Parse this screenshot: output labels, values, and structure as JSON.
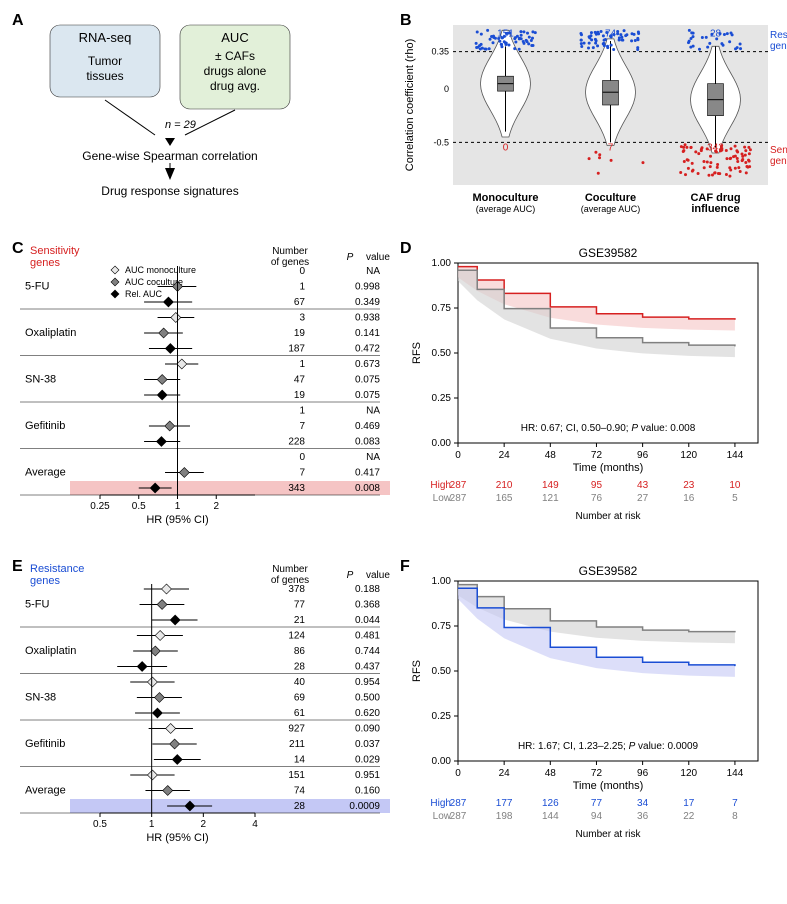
{
  "panelA": {
    "box1_title": "RNA-seq",
    "box1_sub": "Tumor\ntissues",
    "box1_bg": "#dbe7f0",
    "box2_title": "AUC",
    "box2_sub": "± CAFs\ndrugs alone\ndrug avg.",
    "box2_bg": "#e2f0d9",
    "n_label": "n = 29",
    "step1": "Gene-wise Spearman correlation",
    "step2": "Drug response signatures"
  },
  "panelB": {
    "ylabel": "Correlation coefficient (rho)",
    "top_label": "Resistance\ngenes",
    "bottom_label": "Sensitivity\ngenes",
    "upper_thresh": 0.35,
    "lower_thresh": -0.5,
    "categories": [
      {
        "main": "Monoculture",
        "sub": "(average AUC)"
      },
      {
        "main": "Coculture",
        "sub": "(average AUC)"
      },
      {
        "main": "CAF drug\ninfluence",
        "sub": ""
      }
    ],
    "blue_counts": [
      151,
      74,
      28
    ],
    "red_counts": [
      0,
      7,
      343
    ],
    "box_data": [
      {
        "q1": -0.02,
        "med": 0.05,
        "q3": 0.12,
        "whisk_lo": -0.4,
        "whisk_hi": 0.4
      },
      {
        "q1": -0.15,
        "med": -0.03,
        "q3": 0.08,
        "whisk_lo": -0.5,
        "whisk_hi": 0.45
      },
      {
        "q1": -0.25,
        "med": -0.1,
        "q3": 0.05,
        "whisk_lo": -0.55,
        "whisk_hi": 0.4
      }
    ],
    "blue_color": "#1a4dd4",
    "red_color": "#d62020",
    "ylim": [
      -0.9,
      0.6
    ],
    "bg": "#e5e5e5"
  },
  "panelC": {
    "title": "Sensitivity\ngenes",
    "title_color": "#d62020",
    "legend": [
      "AUC monoculture",
      "AUC coculture",
      "Rel. AUC"
    ],
    "legend_fills": [
      "#e8e8e8",
      "#808080",
      "#000000"
    ],
    "drugs": [
      "5-FU",
      "Oxaliplatin",
      "SN-38",
      "Gefitinib",
      "Average"
    ],
    "col_headers": [
      "Number\nof genes",
      "P value"
    ],
    "rows": [
      {
        "drug": "5-FU",
        "set": 0,
        "hr": null,
        "lo": null,
        "hi": null,
        "n": 0,
        "p": "NA"
      },
      {
        "drug": "5-FU",
        "set": 1,
        "hr": 1.0,
        "lo": 0.7,
        "hi": 1.4,
        "n": 1,
        "p": "0.998"
      },
      {
        "drug": "5-FU",
        "set": 2,
        "hr": 0.85,
        "lo": 0.55,
        "hi": 1.3,
        "n": 67,
        "p": "0.349"
      },
      {
        "drug": "Oxaliplatin",
        "set": 0,
        "hr": 0.97,
        "lo": 0.7,
        "hi": 1.35,
        "n": 3,
        "p": "0.938"
      },
      {
        "drug": "Oxaliplatin",
        "set": 1,
        "hr": 0.78,
        "lo": 0.55,
        "hi": 1.1,
        "n": 19,
        "p": "0.141"
      },
      {
        "drug": "Oxaliplatin",
        "set": 2,
        "hr": 0.88,
        "lo": 0.6,
        "hi": 1.3,
        "n": 187,
        "p": "0.472"
      },
      {
        "drug": "SN-38",
        "set": 0,
        "hr": 1.08,
        "lo": 0.8,
        "hi": 1.45,
        "n": 1,
        "p": "0.673"
      },
      {
        "drug": "SN-38",
        "set": 1,
        "hr": 0.76,
        "lo": 0.55,
        "hi": 1.05,
        "n": 47,
        "p": "0.075"
      },
      {
        "drug": "SN-38",
        "set": 2,
        "hr": 0.76,
        "lo": 0.55,
        "hi": 1.05,
        "n": 19,
        "p": "0.075"
      },
      {
        "drug": "Gefitinib",
        "set": 0,
        "hr": null,
        "lo": null,
        "hi": null,
        "n": 1,
        "p": "NA"
      },
      {
        "drug": "Gefitinib",
        "set": 1,
        "hr": 0.87,
        "lo": 0.6,
        "hi": 1.25,
        "n": 7,
        "p": "0.469"
      },
      {
        "drug": "Gefitinib",
        "set": 2,
        "hr": 0.75,
        "lo": 0.55,
        "hi": 1.05,
        "n": 228,
        "p": "0.083"
      },
      {
        "drug": "Average",
        "set": 0,
        "hr": null,
        "lo": null,
        "hi": null,
        "n": 0,
        "p": "NA"
      },
      {
        "drug": "Average",
        "set": 1,
        "hr": 1.13,
        "lo": 0.8,
        "hi": 1.6,
        "n": 7,
        "p": "0.417"
      },
      {
        "drug": "Average",
        "set": 2,
        "hr": 0.67,
        "lo": 0.5,
        "hi": 0.9,
        "n": 343,
        "p": "0.008",
        "highlight": "#f5c4c4"
      }
    ],
    "xlim": [
      0.25,
      4
    ],
    "xticks": [
      0.25,
      0.5,
      1,
      2
    ],
    "xlabel": "HR (95% CI)"
  },
  "panelD": {
    "title": "GSE39582",
    "ylabel": "RFS",
    "xlabel": "Time (months)",
    "stats": "HR: 0.67; CI, 0.50–0.90; P value: 0.008",
    "xlim": [
      0,
      156
    ],
    "xticks": [
      0,
      24,
      48,
      72,
      96,
      120,
      144
    ],
    "ylim": [
      0,
      1
    ],
    "high_color": "#d62020",
    "low_color": "#808080",
    "high_band": "#f5c4c4",
    "low_band": "#d0d0d0",
    "risk_labels": [
      "High",
      "Low"
    ],
    "risk_table": {
      "High": [
        287,
        210,
        149,
        95,
        43,
        23,
        10
      ],
      "Low": [
        287,
        165,
        121,
        76,
        27,
        16,
        5
      ]
    },
    "risk_colors": {
      "High": "#d62020",
      "Low": "#808080"
    },
    "risk_footer": "Number at risk"
  },
  "panelE": {
    "title": "Resistance\ngenes",
    "title_color": "#1a4dd4",
    "drugs": [
      "5-FU",
      "Oxaliplatin",
      "SN-38",
      "Gefitinib",
      "Average"
    ],
    "col_headers": [
      "Number\nof genes",
      "P value"
    ],
    "rows": [
      {
        "drug": "5-FU",
        "set": 0,
        "hr": 1.22,
        "lo": 0.9,
        "hi": 1.65,
        "n": 378,
        "p": "0.188"
      },
      {
        "drug": "5-FU",
        "set": 1,
        "hr": 1.15,
        "lo": 0.85,
        "hi": 1.55,
        "n": 77,
        "p": "0.368"
      },
      {
        "drug": "5-FU",
        "set": 2,
        "hr": 1.37,
        "lo": 1.0,
        "hi": 1.85,
        "n": 21,
        "p": "0.044"
      },
      {
        "drug": "Oxaliplatin",
        "set": 0,
        "hr": 1.12,
        "lo": 0.82,
        "hi": 1.52,
        "n": 124,
        "p": "0.481"
      },
      {
        "drug": "Oxaliplatin",
        "set": 1,
        "hr": 1.05,
        "lo": 0.78,
        "hi": 1.42,
        "n": 86,
        "p": "0.744"
      },
      {
        "drug": "Oxaliplatin",
        "set": 2,
        "hr": 0.88,
        "lo": 0.63,
        "hi": 1.23,
        "n": 28,
        "p": "0.437"
      },
      {
        "drug": "SN-38",
        "set": 0,
        "hr": 1.01,
        "lo": 0.75,
        "hi": 1.36,
        "n": 40,
        "p": "0.954"
      },
      {
        "drug": "SN-38",
        "set": 1,
        "hr": 1.11,
        "lo": 0.82,
        "hi": 1.5,
        "n": 69,
        "p": "0.500"
      },
      {
        "drug": "SN-38",
        "set": 2,
        "hr": 1.08,
        "lo": 0.8,
        "hi": 1.46,
        "n": 61,
        "p": "0.620"
      },
      {
        "drug": "Gefitinib",
        "set": 0,
        "hr": 1.29,
        "lo": 0.96,
        "hi": 1.74,
        "n": 927,
        "p": "0.090"
      },
      {
        "drug": "Gefitinib",
        "set": 1,
        "hr": 1.36,
        "lo": 1.01,
        "hi": 1.83,
        "n": 211,
        "p": "0.037"
      },
      {
        "drug": "Gefitinib",
        "set": 2,
        "hr": 1.41,
        "lo": 1.03,
        "hi": 1.93,
        "n": 14,
        "p": "0.029"
      },
      {
        "drug": "Average",
        "set": 0,
        "hr": 1.01,
        "lo": 0.75,
        "hi": 1.36,
        "n": 151,
        "p": "0.951"
      },
      {
        "drug": "Average",
        "set": 1,
        "hr": 1.24,
        "lo": 0.92,
        "hi": 1.67,
        "n": 74,
        "p": "0.160"
      },
      {
        "drug": "Average",
        "set": 2,
        "hr": 1.67,
        "lo": 1.23,
        "hi": 2.25,
        "n": 28,
        "p": "0.0009",
        "highlight": "#c4c8f5"
      }
    ],
    "xlim": [
      0.5,
      4
    ],
    "xticks": [
      0.5,
      1,
      2,
      4
    ],
    "xlabel": "HR (95% CI)"
  },
  "panelF": {
    "title": "GSE39582",
    "ylabel": "RFS",
    "xlabel": "Time (months)",
    "stats": "HR: 1.67; CI, 1.23–2.25; P value: 0.0009",
    "xlim": [
      0,
      156
    ],
    "xticks": [
      0,
      24,
      48,
      72,
      96,
      120,
      144
    ],
    "ylim": [
      0,
      1
    ],
    "high_color": "#1a4dd4",
    "low_color": "#808080",
    "high_band": "#c4c8f5",
    "low_band": "#d0d0d0",
    "risk_labels": [
      "High",
      "Low"
    ],
    "risk_table": {
      "High": [
        287,
        177,
        126,
        77,
        34,
        17,
        7
      ],
      "Low": [
        287,
        198,
        144,
        94,
        36,
        22,
        8
      ]
    },
    "risk_colors": {
      "High": "#1a4dd4",
      "Low": "#808080"
    },
    "risk_footer": "Number at risk"
  }
}
